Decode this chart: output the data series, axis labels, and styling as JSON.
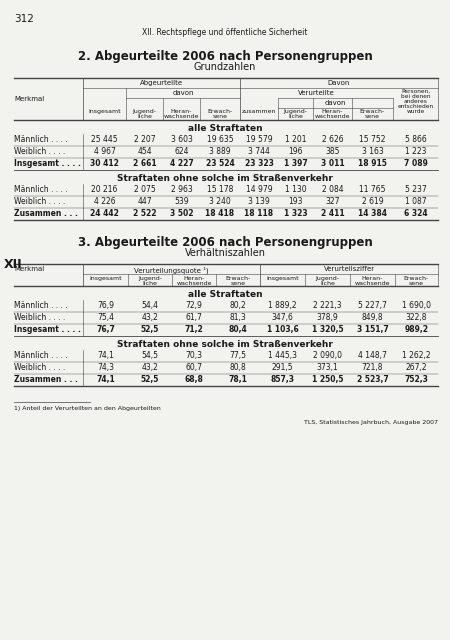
{
  "page_number": "312",
  "header": "XII. Rechtspflege und öffentliche Sicherheit",
  "table1_title": "2. Abgeurteilte 2006 nach Personengruppen",
  "table1_subtitle": "Grundzahlen",
  "table2_title": "3. Abgeurteilte 2006 nach Personengruppen",
  "table2_subtitle": "Verhältniszahlen",
  "xii_label": "XII",
  "footnote": "1) Anteil der Verurteilten an den Abgeurteilten",
  "footer": "TLS, Statistisches Jahrbuch, Ausgabe 2007",
  "table1": {
    "merkmal_col": "Merkmal",
    "section1_title": "alle Straftaten",
    "section1": [
      [
        "Männlich . . . .",
        "25 445",
        "2 207",
        "3 603",
        "19 635",
        "19 579",
        "1 201",
        "2 626",
        "15 752",
        "5 866"
      ],
      [
        "Weiblich . . . .",
        "4 967",
        "454",
        "624",
        "3 889",
        "3 744",
        "196",
        "385",
        "3 163",
        "1 223"
      ],
      [
        "Insgesamt . . . .",
        "30 412",
        "2 661",
        "4 227",
        "23 524",
        "23 323",
        "1 397",
        "3 011",
        "18 915",
        "7 089"
      ]
    ],
    "section1_bold": [
      false,
      false,
      true
    ],
    "section2_title": "Straftaten ohne solche im Straßenverkehr",
    "section2": [
      [
        "Männlich . . . .",
        "20 216",
        "2 075",
        "2 963",
        "15 178",
        "14 979",
        "1 130",
        "2 084",
        "11 765",
        "5 237"
      ],
      [
        "Weiblich . . . .",
        "4 226",
        "447",
        "539",
        "3 240",
        "3 139",
        "193",
        "327",
        "2 619",
        "1 087"
      ],
      [
        "Zusammen . . .",
        "24 442",
        "2 522",
        "3 502",
        "18 418",
        "18 118",
        "1 323",
        "2 411",
        "14 384",
        "6 324"
      ]
    ],
    "section2_bold": [
      false,
      false,
      true
    ]
  },
  "table2": {
    "merkmal_col": "Merkmal",
    "section1_title": "alle Straftaten",
    "section1": [
      [
        "Männlich . . . .",
        "76,9",
        "54,4",
        "72,9",
        "80,2",
        "1 889,2",
        "2 221,3",
        "5 227,7",
        "1 690,0"
      ],
      [
        "Weiblich . . . .",
        "75,4",
        "43,2",
        "61,7",
        "81,3",
        "347,6",
        "378,9",
        "849,8",
        "322,8"
      ],
      [
        "Insgesamt . . . .",
        "76,7",
        "52,5",
        "71,2",
        "80,4",
        "1 103,6",
        "1 320,5",
        "3 151,7",
        "989,2"
      ]
    ],
    "section1_bold": [
      false,
      false,
      true
    ],
    "section2_title": "Straftaten ohne solche im Straßenverkehr",
    "section2": [
      [
        "Männlich . . . .",
        "74,1",
        "54,5",
        "70,3",
        "77,5",
        "1 445,3",
        "2 090,0",
        "4 148,7",
        "1 262,2"
      ],
      [
        "Weiblich . . . .",
        "74,3",
        "43,2",
        "60,7",
        "80,8",
        "291,5",
        "373,1",
        "721,8",
        "267,2"
      ],
      [
        "Zusammen . . .",
        "74,1",
        "52,5",
        "68,8",
        "78,1",
        "857,3",
        "1 250,5",
        "2 523,7",
        "752,3"
      ]
    ],
    "section2_bold": [
      false,
      false,
      true
    ]
  },
  "bg_color": "#f2f2ee",
  "text_color": "#1a1a1a",
  "line_color": "#444444"
}
